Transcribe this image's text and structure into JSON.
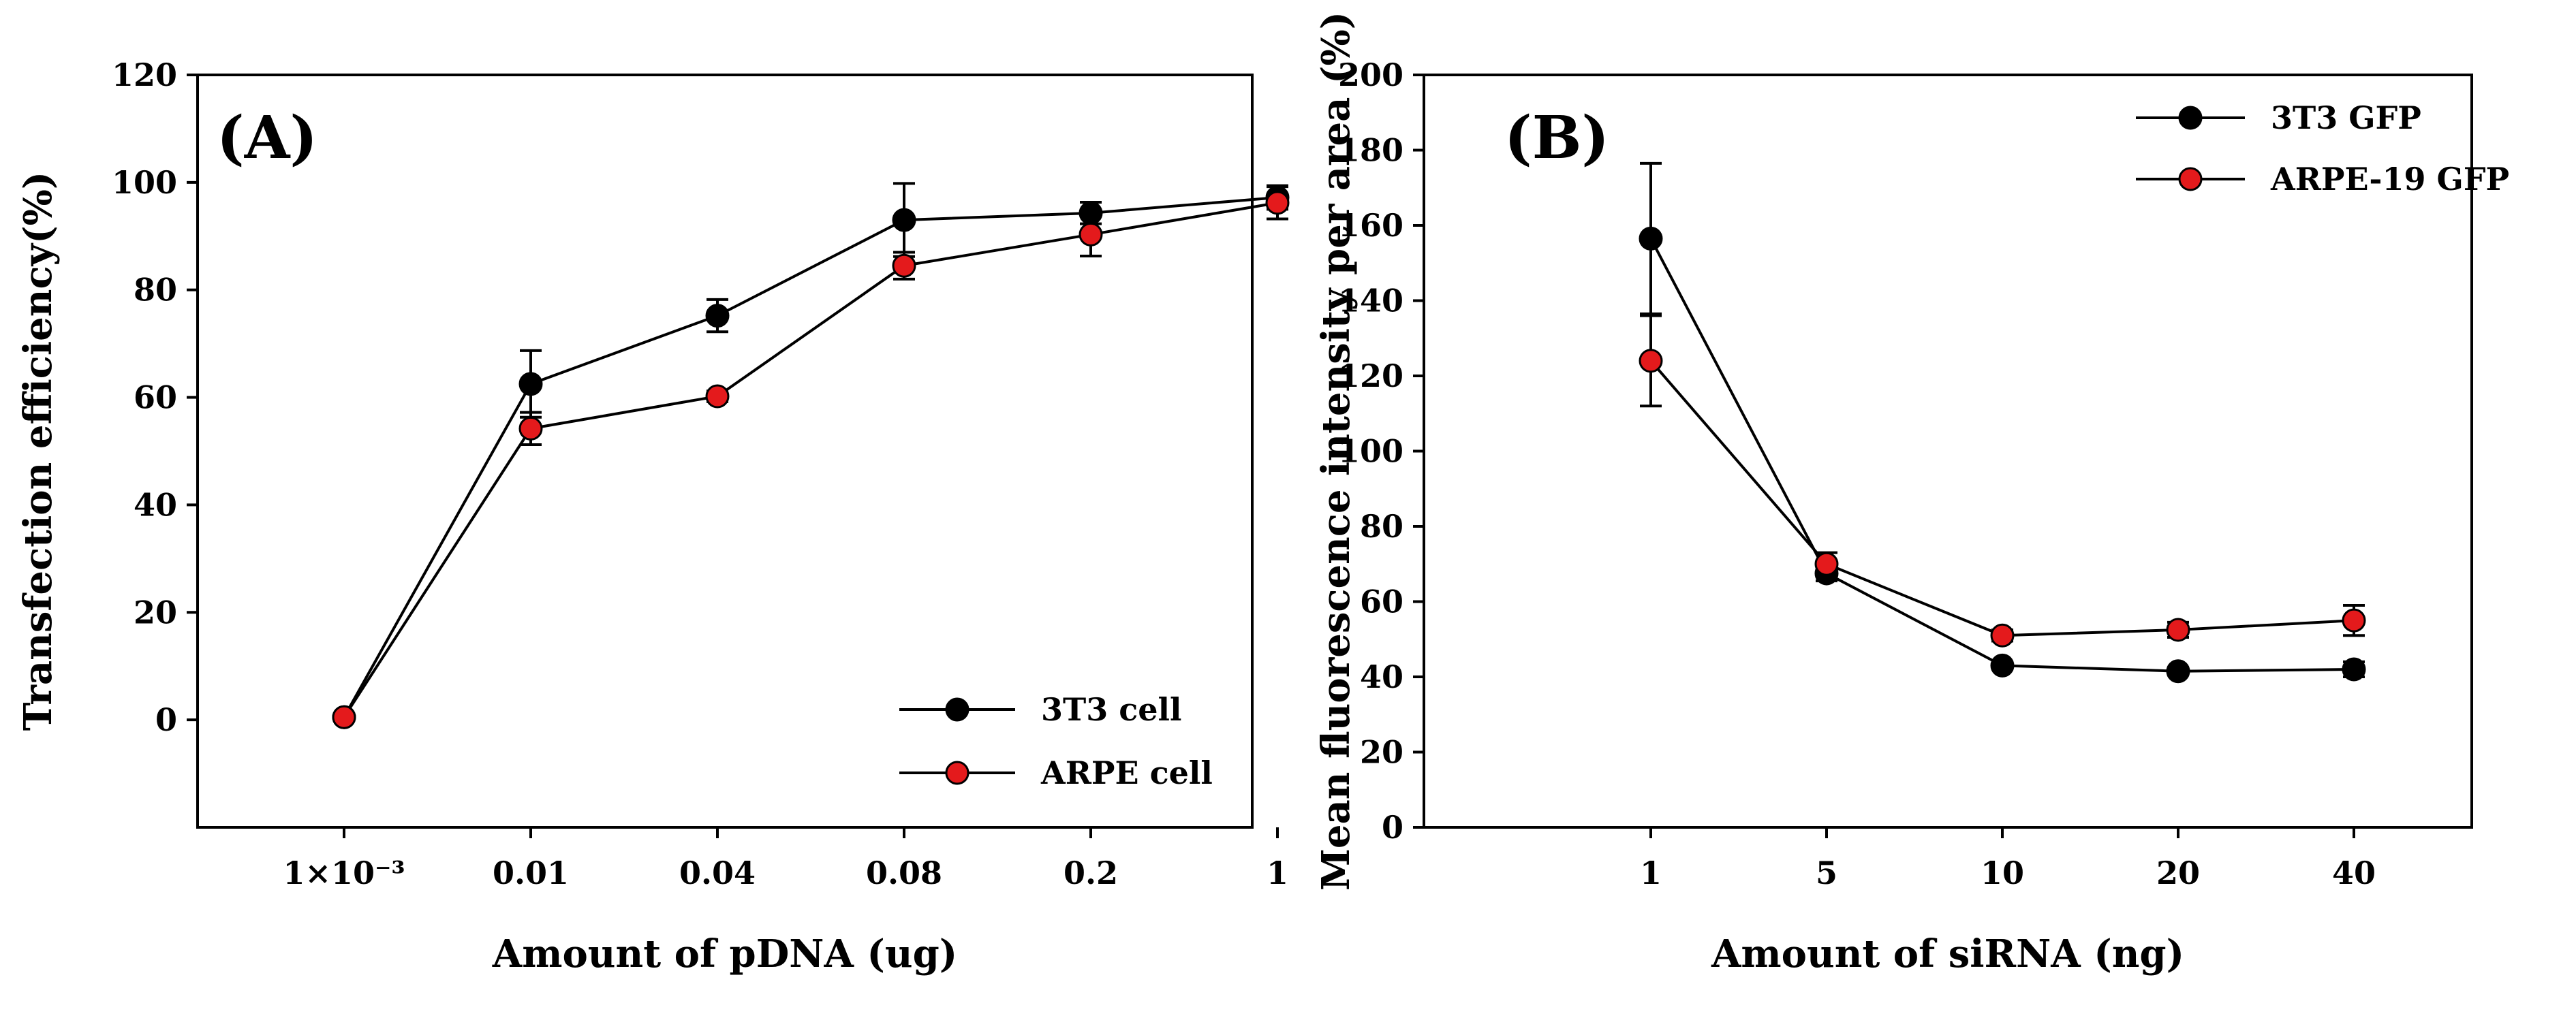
{
  "chart_data": [
    {
      "type": "line",
      "panel_label": "(A)",
      "xlabel": "Amount of pDNA (ug)",
      "ylabel": "Transfection efficiency(%)",
      "categories": [
        "1×10⁻³",
        "0.01",
        "0.04",
        "0.08",
        "0.2",
        "1"
      ],
      "ylim": [
        -20,
        120
      ],
      "yticks": [
        0,
        20,
        40,
        60,
        80,
        100,
        120
      ],
      "ytick_labels": [
        "0",
        "20",
        "40",
        "60",
        "80",
        "100",
        "120"
      ],
      "legend_position": "bottom-right",
      "series": [
        {
          "name": "3T3 cell",
          "color": "#000000",
          "values": [
            0.5,
            62.5,
            75.2,
            93.0,
            94.3,
            97.2
          ],
          "errors": [
            0,
            6.2,
            3.0,
            6.8,
            2.0,
            2.2
          ]
        },
        {
          "name": "ARPE cell",
          "color": "#e41a1c",
          "values": [
            0.5,
            54.2,
            60.2,
            84.5,
            90.3,
            96.2
          ],
          "errors": [
            0,
            3.0,
            1.0,
            2.5,
            4.0,
            3.0
          ]
        }
      ]
    },
    {
      "type": "line",
      "panel_label": "(B)",
      "xlabel": "Amount of siRNA (ng)",
      "ylabel": "Mean fluorescence intensity per area (%)",
      "categories": [
        "1",
        "5",
        "10",
        "20",
        "40"
      ],
      "ylim": [
        0,
        200
      ],
      "yticks": [
        0,
        20,
        40,
        60,
        80,
        100,
        120,
        140,
        160,
        180,
        200
      ],
      "ytick_labels": [
        "0",
        "20",
        "40",
        "60",
        "80",
        "100",
        "120",
        "140",
        "160",
        "180",
        "200"
      ],
      "legend_position": "top-right",
      "series": [
        {
          "name": "3T3 GFP",
          "color": "#000000",
          "values": [
            156.5,
            67.5,
            43.0,
            41.5,
            42.0
          ],
          "errors": [
            20.0,
            2.0,
            1.0,
            1.0,
            2.0
          ]
        },
        {
          "name": "ARPE-19 GFP",
          "color": "#e41a1c",
          "values": [
            124.0,
            70.0,
            51.0,
            52.5,
            55.0
          ],
          "errors": [
            12.0,
            3.0,
            1.5,
            2.0,
            4.0
          ]
        }
      ]
    }
  ]
}
